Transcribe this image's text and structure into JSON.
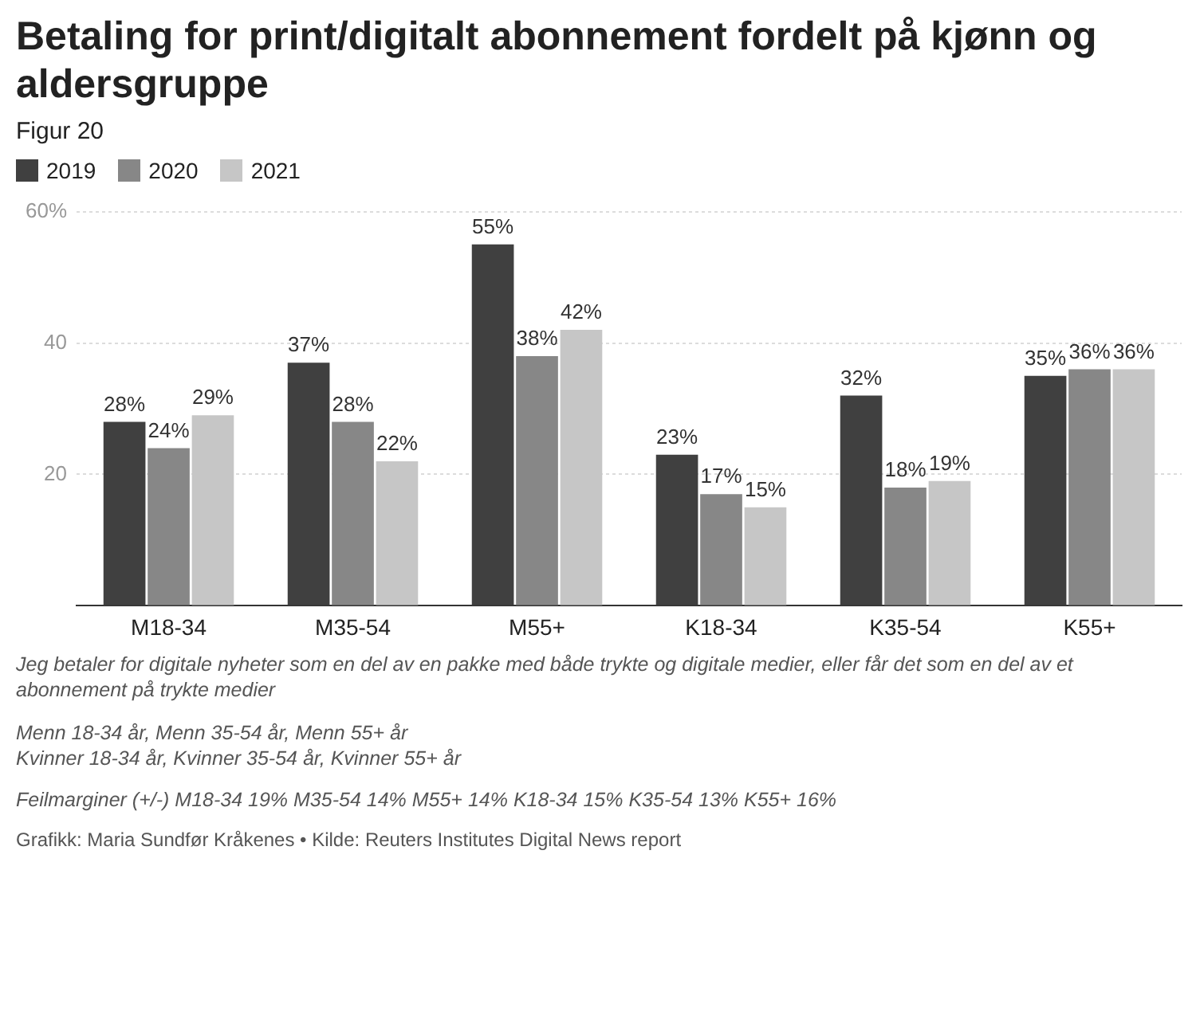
{
  "chart_data": {
    "type": "bar",
    "title": "Betaling for print/digitalt abonnement fordelt på kjønn og aldersgruppe",
    "subtitle": "Figur 20",
    "categories": [
      "M18-34",
      "M35-54",
      "M55+",
      "K18-34",
      "K35-54",
      "K55+"
    ],
    "series": [
      {
        "name": "2019",
        "color": "#404040",
        "values": [
          28,
          37,
          55,
          23,
          32,
          35
        ],
        "value_labels": [
          "28%",
          "37%",
          "55%",
          "23%",
          "32%",
          "35%"
        ]
      },
      {
        "name": "2020",
        "color": "#878787",
        "values": [
          24,
          28,
          38,
          17,
          18,
          36
        ],
        "value_labels": [
          "24%",
          "28%",
          "38%",
          "17%",
          "18%",
          "36%"
        ]
      },
      {
        "name": "2021",
        "color": "#c6c6c6",
        "values": [
          29,
          22,
          42,
          15,
          19,
          36
        ],
        "value_labels": [
          "29%",
          "22%",
          "42%",
          "15%",
          "19%",
          "36%"
        ]
      }
    ],
    "ylim": [
      0,
      60
    ],
    "yticks": [
      {
        "value": 0,
        "label": null
      },
      20,
      40,
      {
        "value": 60,
        "label": "60%"
      }
    ],
    "grid": "y",
    "legend": "top left",
    "annotations": [
      "Jeg betaler for digitale nyheter som en del av en pakke med både trykte og digitale medier, eller får det som en del av et abonnement på trykte medier",
      "Menn 18-34 år, Menn 35-54 år, Menn 55+ år\nKvinner 18-34 år, Kvinner 35-54 år, Kvinner 55+ år",
      "Feilmarginer (+/-) M18-34 19% M35-54 14% M55+ 14% K18-34 15% K35-54 13% K55+ 16%",
      "Grafikk: Maria Sundfør Kråkenes • Kilde: Reuters Institutes Digital News report"
    ]
  }
}
